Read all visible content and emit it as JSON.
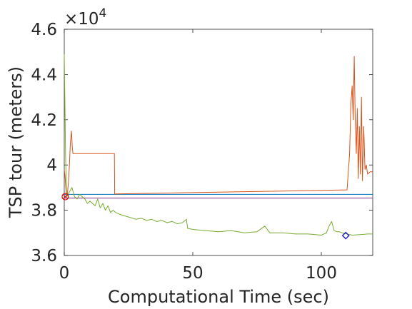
{
  "chart_data": {
    "type": "line",
    "xlabel": "Computational Time (sec)",
    "ylabel": "TSP tour (meters)",
    "y_exponent_label": "×10",
    "y_exponent_power": "4",
    "xlim": [
      0,
      120
    ],
    "ylim": [
      36000,
      46000
    ],
    "xticks": [
      0,
      50,
      100
    ],
    "xtick_labels": [
      "0",
      "50",
      "100"
    ],
    "yticks": [
      36000,
      38000,
      40000,
      42000,
      44000,
      46000
    ],
    "ytick_labels": [
      "3.6",
      "3.8",
      "4",
      "4.2",
      "4.4",
      "4.6"
    ],
    "grid": false,
    "series": [
      {
        "color": "#0072bd",
        "x": [
          0,
          120
        ],
        "y": [
          38700,
          38700
        ]
      },
      {
        "color": "#7e2f8e",
        "x": [
          0,
          120
        ],
        "y": [
          38540,
          38540
        ]
      },
      {
        "color": "#d95319",
        "x": [
          0,
          0.3,
          0.6,
          0.9,
          1.2,
          1.6,
          2.0,
          2.4,
          2.8,
          3.1,
          3.4,
          3.8,
          4.5,
          5,
          10,
          15,
          19.5,
          19.6,
          20,
          40,
          60,
          80,
          100,
          110,
          111,
          111.5,
          112,
          112.4,
          112.8,
          113.2,
          113.6,
          114,
          114.4,
          114.8,
          115.2,
          115.6,
          116,
          116.5,
          117,
          117.5,
          118,
          119,
          120
        ],
        "y": [
          39800,
          39500,
          39000,
          38600,
          38700,
          39200,
          40000,
          41000,
          41500,
          40800,
          40500,
          40500,
          40500,
          40500,
          40500,
          40500,
          40500,
          38700,
          38720,
          38760,
          38800,
          38840,
          38880,
          38900,
          40500,
          42700,
          43500,
          42000,
          44800,
          42000,
          40500,
          42500,
          39400,
          41700,
          39600,
          43000,
          39300,
          41700,
          39800,
          40000,
          39600,
          39700,
          39700
        ]
      },
      {
        "color": "#77ac30",
        "x": [
          0,
          0.5,
          0.8,
          1.0,
          1.5,
          2,
          3,
          4,
          5,
          6,
          7,
          8,
          9,
          10,
          11,
          12,
          13,
          14,
          15,
          16,
          17,
          18,
          19,
          20,
          22,
          25,
          28,
          30,
          32,
          34,
          36,
          38,
          40,
          42,
          44,
          46,
          47.5,
          48,
          50,
          55,
          60,
          65,
          70,
          75,
          78,
          80,
          85,
          90,
          95,
          100,
          102,
          103,
          104,
          105,
          106,
          107,
          108,
          110,
          112,
          115,
          118,
          120
        ],
        "y": [
          44900,
          40500,
          39000,
          38600,
          38700,
          38800,
          39000,
          38600,
          38500,
          38700,
          38600,
          38500,
          38300,
          38400,
          38300,
          38200,
          38500,
          38100,
          38300,
          38000,
          38200,
          37900,
          38000,
          37900,
          37800,
          37700,
          37600,
          37650,
          37550,
          37600,
          37500,
          37550,
          37450,
          37500,
          37400,
          37450,
          37600,
          37200,
          37150,
          37100,
          37050,
          37100,
          37000,
          37050,
          37300,
          37000,
          37000,
          36950,
          36950,
          36900,
          37000,
          37300,
          37500,
          37100,
          37050,
          37050,
          37000,
          36950,
          36900,
          36920,
          36950,
          36950
        ]
      }
    ],
    "markers": [
      {
        "shape": "circle",
        "color": "#e60000",
        "x": 0.4,
        "y": 38600
      },
      {
        "shape": "diamond",
        "color": "#1f1fd1",
        "x": 109.5,
        "y": 36880
      }
    ]
  }
}
